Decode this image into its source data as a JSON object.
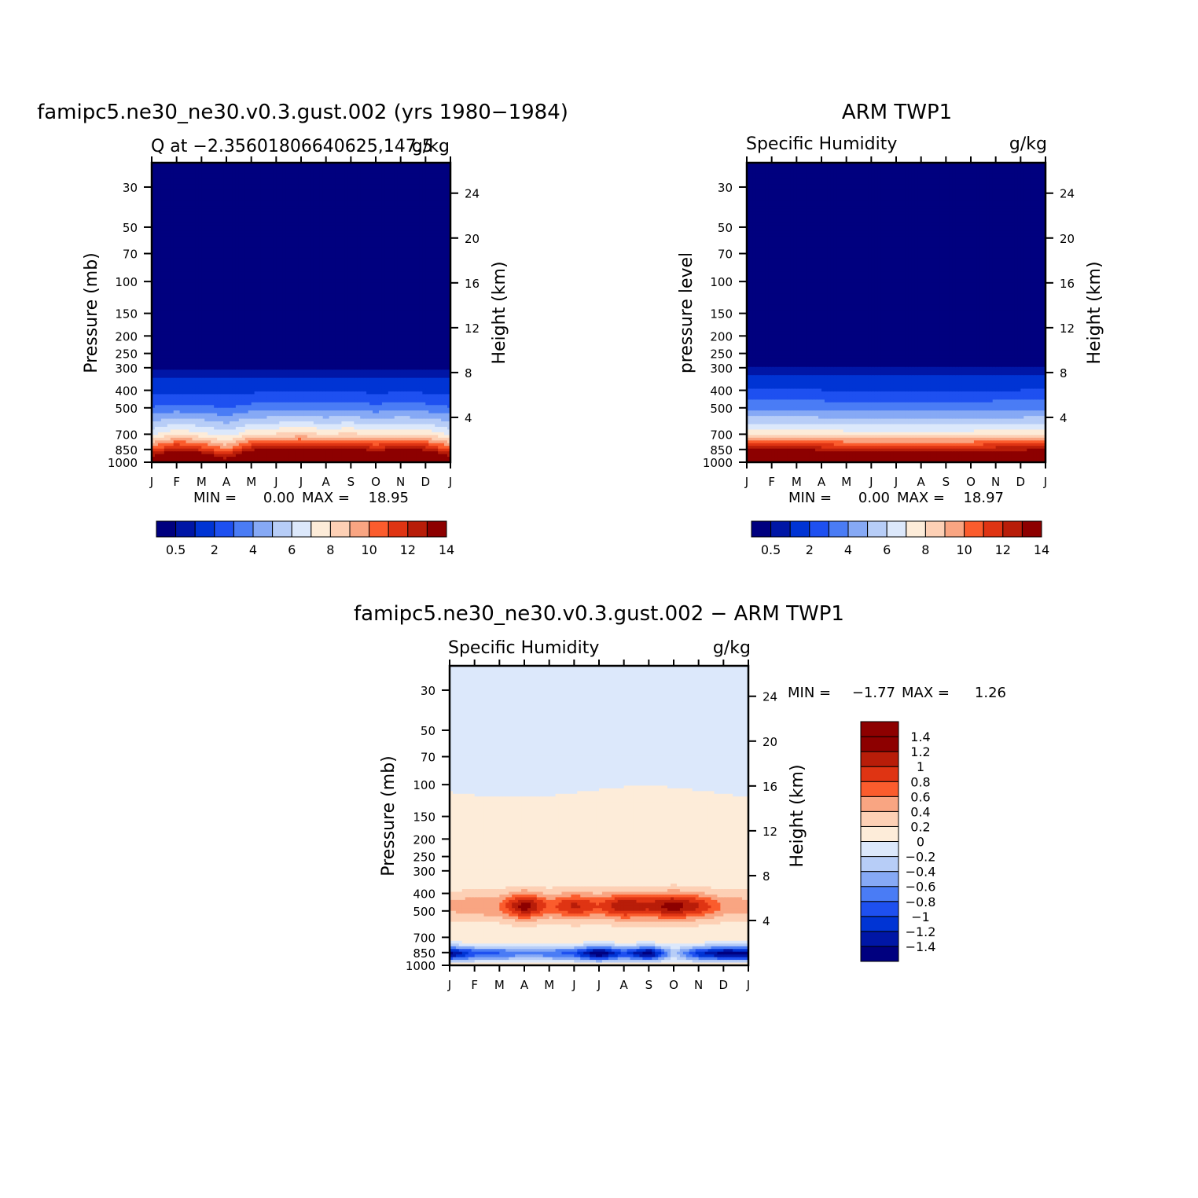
{
  "figure": {
    "background": "#ffffff"
  },
  "chart_data": [
    {
      "id": "panel1",
      "type": "heatmap",
      "title": "famipc5.ne30_ne30.v0.3.gust.002 (yrs 1980−1984)",
      "left_subtitle": "Q at −2.35601806640625,147.5",
      "right_subtitle": "g/kg",
      "ylabel": "Pressure (mb)",
      "ylabel_right": "Height (km)",
      "x_ticks": [
        "J",
        "F",
        "M",
        "A",
        "M",
        "J",
        "J",
        "A",
        "S",
        "O",
        "N",
        "D",
        "J"
      ],
      "y_ticks": [
        30,
        50,
        70,
        100,
        150,
        200,
        250,
        300,
        400,
        500,
        700,
        850,
        1000
      ],
      "y_right_ticks": [
        24,
        20,
        16,
        12,
        8,
        4
      ],
      "stats": {
        "min_label": "MIN =",
        "min": "0.00",
        "max_label": "MAX =",
        "max": "18.95"
      },
      "levels": [
        0.5,
        1,
        2,
        3,
        4,
        5,
        6,
        7,
        8,
        9,
        10,
        11,
        12,
        13,
        14
      ],
      "level_labels": [
        "0.5",
        "2",
        "4",
        "6",
        "8",
        "10",
        "12",
        "14"
      ],
      "colors": [
        "#00007f",
        "#0016a6",
        "#0034d4",
        "#1e50f0",
        "#4a7cf5",
        "#86a9f5",
        "#b7cdf7",
        "#dce8fb",
        "#fdecd9",
        "#fdd0b5",
        "#f9a582",
        "#fb5c2d",
        "#df3413",
        "#b81d09",
        "#8d0000"
      ],
      "profile_mean": [
        {
          "p": 1000,
          "q": 16.5
        },
        {
          "p": 925,
          "q": 14
        },
        {
          "p": 850,
          "q": 11.5
        },
        {
          "p": 700,
          "q": 7.2
        },
        {
          "p": 600,
          "q": 5.3
        },
        {
          "p": 500,
          "q": 3.2
        },
        {
          "p": 400,
          "q": 1.7
        },
        {
          "p": 300,
          "q": 0.45
        },
        {
          "p": 250,
          "q": 0.1
        },
        {
          "p": 30,
          "q": 0
        }
      ],
      "monthly_anomaly": [
        -0.15,
        0.25,
        0.05,
        -0.3,
        0.25,
        0.35,
        0.45,
        0.3,
        0.4,
        0.2,
        0.35,
        0.25,
        -0.15
      ]
    },
    {
      "id": "panel2",
      "type": "heatmap",
      "title": "ARM TWP1",
      "left_subtitle": "Specific Humidity",
      "right_subtitle": "g/kg",
      "ylabel": "pressure level",
      "ylabel_right": "Height (km)",
      "x_ticks": [
        "J",
        "F",
        "M",
        "A",
        "M",
        "J",
        "J",
        "A",
        "S",
        "O",
        "N",
        "D",
        "J"
      ],
      "y_ticks": [
        30,
        50,
        70,
        100,
        150,
        200,
        250,
        300,
        400,
        500,
        700,
        850,
        1000
      ],
      "y_right_ticks": [
        24,
        20,
        16,
        12,
        8,
        4
      ],
      "stats": {
        "min_label": "MIN =",
        "min": "0.00",
        "max_label": "MAX =",
        "max": "18.97"
      },
      "levels": [
        0.5,
        1,
        2,
        3,
        4,
        5,
        6,
        7,
        8,
        9,
        10,
        11,
        12,
        13,
        14
      ],
      "level_labels": [
        "0.5",
        "2",
        "4",
        "6",
        "8",
        "10",
        "12",
        "14"
      ],
      "colors": [
        "#00007f",
        "#0016a6",
        "#0034d4",
        "#1e50f0",
        "#4a7cf5",
        "#86a9f5",
        "#b7cdf7",
        "#dce8fb",
        "#fdecd9",
        "#fdd0b5",
        "#f9a582",
        "#fb5c2d",
        "#df3413",
        "#b81d09",
        "#8d0000"
      ],
      "profile_mean": [
        {
          "p": 1000,
          "q": 17
        },
        {
          "p": 925,
          "q": 14.5
        },
        {
          "p": 850,
          "q": 12.5
        },
        {
          "p": 700,
          "q": 7.5
        },
        {
          "p": 600,
          "q": 5.6
        },
        {
          "p": 500,
          "q": 3.6
        },
        {
          "p": 400,
          "q": 2.0
        },
        {
          "p": 300,
          "q": 0.55
        },
        {
          "p": 250,
          "q": 0.1
        },
        {
          "p": 30,
          "q": 0
        }
      ],
      "monthly_anomaly": [
        0.1,
        0.15,
        0.1,
        0.05,
        0.0,
        0.0,
        0.0,
        0.0,
        0.0,
        0.0,
        0.05,
        0.05,
        0.1
      ]
    },
    {
      "id": "panel3",
      "type": "heatmap",
      "title": "famipc5.ne30_ne30.v0.3.gust.002 − ARM TWP1",
      "left_subtitle": "Specific Humidity",
      "right_subtitle": "g/kg",
      "ylabel": "Pressure (mb)",
      "ylabel_right": "Height (km)",
      "x_ticks": [
        "J",
        "F",
        "M",
        "A",
        "M",
        "J",
        "J",
        "A",
        "S",
        "O",
        "N",
        "D",
        "J"
      ],
      "y_ticks": [
        30,
        50,
        70,
        100,
        150,
        200,
        250,
        300,
        400,
        500,
        700,
        850,
        1000
      ],
      "y_right_ticks": [
        24,
        20,
        16,
        12,
        8,
        4
      ],
      "stats": {
        "min_label": "MIN =",
        "min": "−1.77",
        "max_label": "MAX =",
        "max": "1.26"
      },
      "levels": [
        -1.4,
        -1.2,
        -1,
        -0.8,
        -0.6,
        -0.4,
        -0.2,
        0,
        0.2,
        0.4,
        0.6,
        0.8,
        1,
        1.2,
        1.4
      ],
      "level_labels": [
        "−1.4",
        "−1.2",
        "−1",
        "−0.8",
        "−0.6",
        "−0.4",
        "−0.2",
        "0",
        "0.2",
        "0.4",
        "0.6",
        "0.8",
        "1",
        "1.2",
        "1.4"
      ],
      "colors": [
        "#00007f",
        "#0016a6",
        "#0034d4",
        "#1e50f0",
        "#4a7cf5",
        "#86a9f5",
        "#b7cdf7",
        "#dce8fb",
        "#fdecd9",
        "#fdd0b5",
        "#f9a582",
        "#fb5c2d",
        "#df3413",
        "#b81d09",
        "#8d0000",
        "#8d0000"
      ],
      "features": {
        "upper_boundary_p": 110,
        "upper_value": -0.05,
        "mid_value": 0.1,
        "warm_band_center_p": 470,
        "warm_band": [
          0.35,
          0.45,
          0.5,
          1.25,
          0.6,
          0.95,
          0.7,
          1.1,
          0.95,
          1.25,
          0.9,
          0.45,
          0.4
        ],
        "cold_band_center_p": 860,
        "cold_band": [
          -1.55,
          -1.0,
          -0.9,
          -0.7,
          -0.8,
          -1.0,
          -1.75,
          -1.0,
          -1.7,
          -0.4,
          -1.2,
          -1.6,
          -1.55
        ]
      }
    }
  ]
}
